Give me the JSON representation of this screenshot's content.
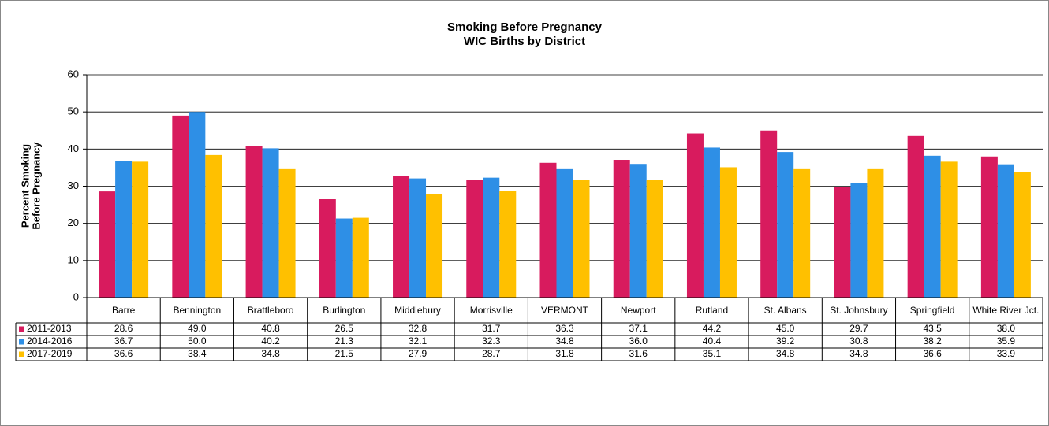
{
  "chart_data": {
    "type": "bar",
    "title": "Smoking Before Pregnancy",
    "subtitle": "WIC Births by District",
    "ylabel": [
      "Percent Smoking",
      "Before Pregnancy"
    ],
    "categories": [
      "Barre",
      "Bennington",
      "Brattleboro",
      "Burlington",
      "Middlebury",
      "Morrisville",
      "VERMONT",
      "Newport",
      "Rutland",
      "St. Albans",
      "St. Johnsbury",
      "Springfield",
      "White River Jct."
    ],
    "series": [
      {
        "name": "2011-2013",
        "color": "#d81b5e",
        "values": [
          28.6,
          49.0,
          40.8,
          26.5,
          32.8,
          31.7,
          36.3,
          37.1,
          44.2,
          45.0,
          29.7,
          43.5,
          38.0
        ],
        "value_labels": [
          "28.6",
          "49.0",
          "40.8",
          "26.5",
          "32.8",
          "31.7",
          "36.3",
          "37.1",
          "44.2",
          "45.0",
          "29.7",
          "43.5",
          "38.0"
        ]
      },
      {
        "name": "2014-2016",
        "color": "#2e8fe6",
        "values": [
          36.7,
          50.0,
          40.2,
          21.3,
          32.1,
          32.3,
          34.8,
          36.0,
          40.4,
          39.2,
          30.8,
          38.2,
          35.9
        ],
        "value_labels": [
          "36.7",
          "50.0",
          "40.2",
          "21.3",
          "32.1",
          "32.3",
          "34.8",
          "36.0",
          "40.4",
          "39.2",
          "30.8",
          "38.2",
          "35.9"
        ]
      },
      {
        "name": "2017-2019",
        "color": "#ffc000",
        "values": [
          36.6,
          38.4,
          34.8,
          21.5,
          27.9,
          28.7,
          31.8,
          31.6,
          35.1,
          34.8,
          34.8,
          36.6,
          33.9
        ],
        "value_labels": [
          "36.6",
          "38.4",
          "34.8",
          "21.5",
          "27.9",
          "28.7",
          "31.8",
          "31.6",
          "35.1",
          "34.8",
          "34.8",
          "36.6",
          "33.9"
        ]
      }
    ],
    "ylim": [
      0,
      60
    ],
    "yticks": [
      0,
      10,
      20,
      30,
      40,
      50,
      60
    ],
    "grid": true
  }
}
